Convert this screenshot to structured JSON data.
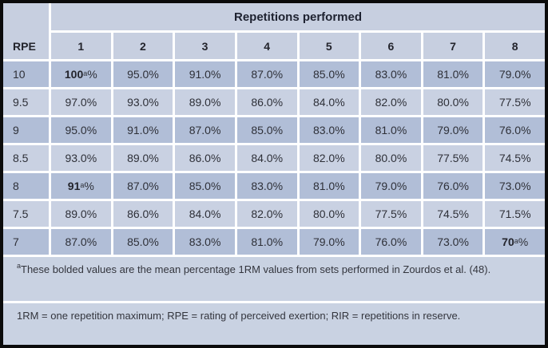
{
  "table": {
    "corner_header": "RPE",
    "span_header": "Repetitions performed",
    "rep_columns": [
      "1",
      "2",
      "3",
      "4",
      "5",
      "6",
      "7",
      "8"
    ],
    "rows": [
      {
        "rpe": "10",
        "shade": "dark",
        "cells": [
          {
            "value": "100",
            "sup": "a",
            "suffix": "%",
            "bold": true
          },
          "95.0%",
          "91.0%",
          "87.0%",
          "85.0%",
          "83.0%",
          "81.0%",
          "79.0%"
        ]
      },
      {
        "rpe": "9.5",
        "shade": "light",
        "cells": [
          "97.0%",
          "93.0%",
          "89.0%",
          "86.0%",
          "84.0%",
          "82.0%",
          "80.0%",
          "77.5%"
        ]
      },
      {
        "rpe": "9",
        "shade": "dark",
        "cells": [
          "95.0%",
          "91.0%",
          "87.0%",
          "85.0%",
          "83.0%",
          "81.0%",
          "79.0%",
          "76.0%"
        ]
      },
      {
        "rpe": "8.5",
        "shade": "light",
        "cells": [
          "93.0%",
          "89.0%",
          "86.0%",
          "84.0%",
          "82.0%",
          "80.0%",
          "77.5%",
          "74.5%"
        ]
      },
      {
        "rpe": "8",
        "shade": "dark",
        "cells": [
          {
            "value": "91",
            "sup": "a",
            "suffix": "%",
            "bold": true
          },
          "87.0%",
          "85.0%",
          "83.0%",
          "81.0%",
          "79.0%",
          "76.0%",
          "73.0%"
        ]
      },
      {
        "rpe": "7.5",
        "shade": "light",
        "cells": [
          "89.0%",
          "86.0%",
          "84.0%",
          "82.0%",
          "80.0%",
          "77.5%",
          "74.5%",
          "71.5%"
        ]
      },
      {
        "rpe": "7",
        "shade": "dark",
        "cells": [
          "87.0%",
          "85.0%",
          "83.0%",
          "81.0%",
          "79.0%",
          "76.0%",
          "73.0%",
          {
            "value": "70",
            "sup": "a",
            "suffix": "%",
            "bold": true
          }
        ]
      }
    ]
  },
  "footnotes": [
    {
      "sup": "a",
      "text": "These bolded values are the mean percentage 1RM values from sets performed in Zourdos et al. (48)."
    },
    {
      "sup": "",
      "text": "1RM = one repetition maximum; RPE = rating of perceived exertion; RIR = repetitions in reserve."
    }
  ],
  "colors": {
    "border": "#0b0b0b",
    "gridline": "#ffffff",
    "header_bg": "#c7cfe0",
    "row_dark_bg": "#b1bed7",
    "row_light_bg": "#c9d1e2",
    "footnote_bg": "#c9d2e2",
    "text": "#2e3038"
  }
}
